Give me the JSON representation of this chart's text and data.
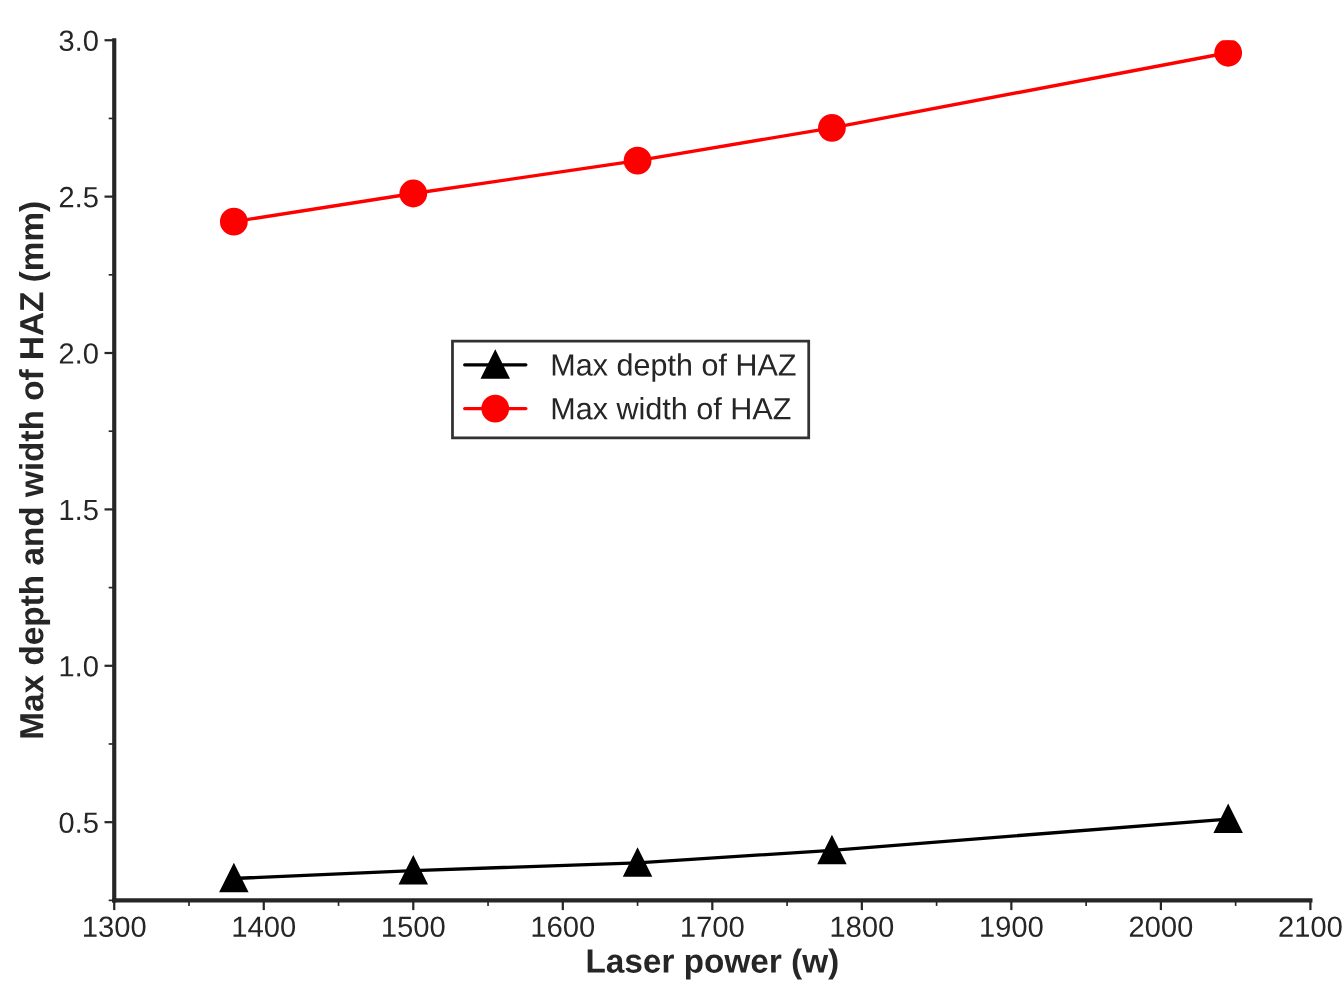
{
  "chart_data": {
    "type": "line",
    "xlabel": "Laser power (w)",
    "ylabel": "Max depth and width of HAZ (mm)",
    "x": [
      1380,
      1500,
      1650,
      1780,
      2045
    ],
    "series": [
      {
        "name": "Max depth of HAZ",
        "color": "#000000",
        "marker": "triangle",
        "values": [
          0.32,
          0.345,
          0.37,
          0.41,
          0.51
        ]
      },
      {
        "name": "Max width of HAZ",
        "color": "#ff0000",
        "marker": "circle",
        "values": [
          2.42,
          2.51,
          2.615,
          2.72,
          2.96
        ]
      }
    ],
    "xlim": [
      1300,
      2100
    ],
    "xticks": [
      1300,
      1400,
      1500,
      1600,
      1700,
      1800,
      1900,
      2000,
      2100
    ],
    "ylim": [
      0.25,
      3.0
    ],
    "yticks": [
      0.5,
      {
        "value": 1,
        "label": "1.0"
      },
      1.5,
      {
        "value": 2,
        "label": "2.0"
      },
      2.5,
      {
        "value": 3,
        "label": "3.0"
      }
    ],
    "legend": "center",
    "grid": false,
    "line_style": "solid"
  }
}
